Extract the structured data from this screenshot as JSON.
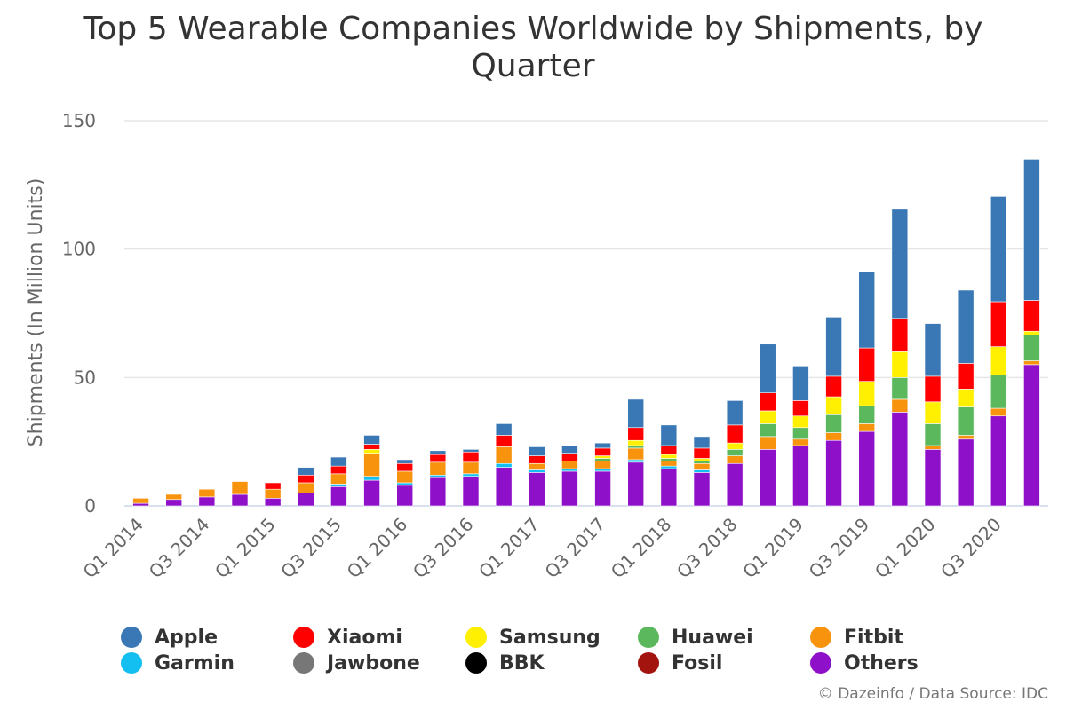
{
  "chart_data": {
    "type": "bar",
    "stacked": true,
    "title": "Top 5 Wearable Companies Worldwide by Shipments, by Quarter",
    "ylabel": "Shipments (In Million Units)",
    "ylim": [
      0,
      150
    ],
    "yticks": [
      0,
      50,
      100,
      150
    ],
    "grid": true,
    "legend_position": "bottom",
    "credits": "© Dazeinfo / Data Source: IDC",
    "categories": [
      "Q1 2014",
      "Q2 2014",
      "Q3 2014",
      "Q4 2014",
      "Q1 2015",
      "Q2 2015",
      "Q3 2015",
      "Q4 2015",
      "Q1 2016",
      "Q2 2016",
      "Q3 2016",
      "Q4 2016",
      "Q1 2017",
      "Q2 2017",
      "Q3 2017",
      "Q4 2017",
      "Q1 2018",
      "Q2 2018",
      "Q3 2018",
      "Q4 2018",
      "Q1 2019",
      "Q2 2019",
      "Q3 2019",
      "Q4 2019",
      "Q1 2020",
      "Q2 2020",
      "Q3 2020",
      "Q4 2020"
    ],
    "shown_tick_labels": [
      "Q1 2014",
      "Q3 2014",
      "Q1 2015",
      "Q3 2015",
      "Q1 2016",
      "Q3 2016",
      "Q1 2017",
      "Q3 2017",
      "Q1 2018",
      "Q3 2018",
      "Q1 2019",
      "Q3 2019",
      "Q1 2020",
      "Q3 2020"
    ],
    "series": [
      {
        "name": "Others",
        "color": "#8e10c9",
        "values": [
          1,
          2.5,
          3.5,
          4.5,
          3,
          5,
          7.5,
          10,
          8,
          11,
          11.5,
          15,
          13,
          13.5,
          13.5,
          17,
          14.5,
          13,
          16.5,
          22,
          23.5,
          25.5,
          29,
          36.5,
          22,
          26,
          35,
          55
        ]
      },
      {
        "name": "Fosil",
        "color": "#a3140f",
        "values": [
          0,
          0,
          0,
          0,
          0,
          0,
          0,
          0,
          0,
          0,
          0,
          0,
          0,
          0,
          0,
          0,
          0,
          0,
          0,
          0,
          0,
          0,
          0,
          0,
          0,
          0,
          0,
          0
        ]
      },
      {
        "name": "BBK",
        "color": "#000000",
        "values": [
          0,
          0,
          0,
          0,
          0,
          0,
          0,
          0,
          0,
          0,
          0,
          0,
          0,
          0,
          0,
          0,
          0,
          0,
          0,
          0,
          0,
          0,
          0,
          0,
          0,
          0,
          0,
          0
        ]
      },
      {
        "name": "Jawbone",
        "color": "#777777",
        "values": [
          0,
          0,
          0,
          0,
          0,
          0,
          0,
          0,
          0,
          0,
          0,
          0,
          0,
          0,
          0,
          0,
          0,
          0,
          0,
          0,
          0,
          0,
          0,
          0,
          0,
          0,
          0,
          0
        ]
      },
      {
        "name": "Garmin",
        "color": "#13bff0",
        "values": [
          0,
          0,
          0,
          0,
          0,
          0,
          1,
          1.5,
          1,
          1,
          1,
          1.5,
          1,
          1,
          1,
          1,
          1,
          1,
          0,
          0,
          0,
          0,
          0,
          0,
          0,
          0,
          0,
          0
        ]
      },
      {
        "name": "Fitbit",
        "color": "#f7930d",
        "values": [
          2,
          2,
          3,
          5,
          3.5,
          4,
          4,
          9,
          4.5,
          5,
          4.5,
          6.5,
          2.5,
          3,
          3,
          4.5,
          2,
          2.5,
          3,
          5,
          2.5,
          3,
          3,
          5,
          1.5,
          1.5,
          3,
          1.5
        ]
      },
      {
        "name": "Huawei",
        "color": "#5cb85c",
        "values": [
          0,
          0,
          0,
          0,
          0,
          0,
          0,
          0,
          0,
          0,
          0,
          0,
          0,
          0,
          1,
          1,
          1,
          1,
          2.5,
          5,
          4.5,
          7,
          7,
          8.5,
          8.5,
          11,
          13,
          10
        ]
      },
      {
        "name": "Samsung",
        "color": "#ffef00",
        "values": [
          0,
          0,
          0,
          0,
          0,
          0,
          0,
          1.5,
          0,
          0,
          0,
          0,
          0,
          0,
          1,
          2,
          1.5,
          1,
          2.5,
          5,
          4.5,
          7,
          9.5,
          10,
          8.5,
          7,
          11,
          1.5
        ]
      },
      {
        "name": "Xiaomi",
        "color": "#ff0000",
        "values": [
          0,
          0,
          0,
          0,
          2.5,
          3,
          3,
          2,
          3,
          3,
          4,
          4.5,
          3,
          3,
          3,
          5,
          3.5,
          4,
          7,
          7,
          6,
          8,
          13,
          13,
          10,
          10,
          17.5,
          12
        ]
      },
      {
        "name": "Apple",
        "color": "#3a78b5",
        "values": [
          0,
          0,
          0,
          0,
          0,
          3,
          3.5,
          3.5,
          1.5,
          1.5,
          1,
          4.5,
          3.5,
          3,
          2,
          11,
          8,
          4.5,
          9.5,
          19,
          13.5,
          23,
          29.5,
          42.5,
          20.5,
          28.5,
          41,
          55
        ]
      }
    ]
  },
  "legend": [
    {
      "label": "Apple",
      "color": "#3a78b5"
    },
    {
      "label": "Xiaomi",
      "color": "#ff0000"
    },
    {
      "label": "Samsung",
      "color": "#ffef00"
    },
    {
      "label": "Huawei",
      "color": "#5cb85c"
    },
    {
      "label": "Fitbit",
      "color": "#f7930d"
    },
    {
      "label": "Garmin",
      "color": "#13bff0"
    },
    {
      "label": "Jawbone",
      "color": "#777777"
    },
    {
      "label": "BBK",
      "color": "#000000"
    },
    {
      "label": "Fosil",
      "color": "#a3140f"
    },
    {
      "label": "Others",
      "color": "#8e10c9"
    }
  ]
}
